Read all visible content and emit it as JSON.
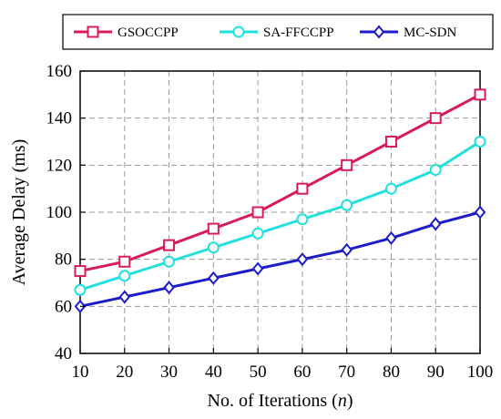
{
  "chart_data": {
    "type": "line",
    "xlabel_prefix": "No. of Iterations (",
    "xlabel_var": "n",
    "xlabel_suffix": ")",
    "ylabel": "Average Delay (ms)",
    "x": [
      10,
      20,
      30,
      40,
      50,
      60,
      70,
      80,
      90,
      100
    ],
    "xlim": [
      10,
      100
    ],
    "ylim": [
      40,
      160
    ],
    "yticks": [
      40,
      60,
      80,
      100,
      120,
      140,
      160
    ],
    "grid": true,
    "legend_position": "top",
    "series": [
      {
        "name": "GSOCCPP",
        "color": "#d81b60",
        "marker": "square",
        "values": [
          75,
          79,
          86,
          93,
          100,
          110,
          120,
          130,
          140,
          150
        ]
      },
      {
        "name": "SA-FFCCPP",
        "color": "#22e0dc",
        "marker": "circle",
        "values": [
          67,
          73,
          79,
          85,
          91,
          97,
          103,
          110,
          118,
          130
        ]
      },
      {
        "name": "MC-SDN",
        "color": "#1c1cc8",
        "marker": "diamond",
        "values": [
          60,
          64,
          68,
          72,
          76,
          80,
          84,
          89,
          95,
          100
        ]
      }
    ]
  }
}
